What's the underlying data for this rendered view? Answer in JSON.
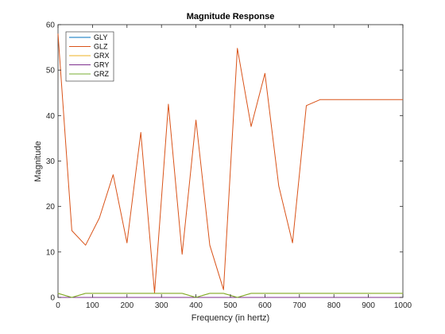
{
  "chart_data": {
    "type": "line",
    "title": "Magnitude Response",
    "xlabel": "Frequency (in hertz)",
    "ylabel": "Magnitude",
    "xlim": [
      0,
      1000
    ],
    "ylim": [
      0,
      60
    ],
    "xticks": [
      0,
      100,
      200,
      300,
      400,
      500,
      600,
      700,
      800,
      900,
      1000
    ],
    "yticks": [
      0,
      10,
      20,
      30,
      40,
      50,
      60
    ],
    "xtick_labels": [
      "0",
      "100",
      "200",
      "300",
      "400",
      "500",
      "600",
      "700",
      "800",
      "900",
      "1000"
    ],
    "ytick_labels": [
      "0",
      "10",
      "20",
      "30",
      "40",
      "50",
      "60"
    ],
    "grid": false,
    "legend_position": "top-left",
    "series": [
      {
        "name": "GLY",
        "color": "#0072BD",
        "x": [
          0,
          1000
        ],
        "y": [
          0,
          0
        ]
      },
      {
        "name": "GLZ",
        "color": "#D95319",
        "x": [
          0,
          40,
          80,
          120,
          160,
          200,
          240,
          280,
          320,
          360,
          400,
          440,
          480,
          520,
          560,
          600,
          640,
          680,
          720,
          760,
          800,
          840,
          880,
          920,
          960,
          1000
        ],
        "y": [
          58,
          14.7,
          11.5,
          17.5,
          27,
          12,
          36.3,
          1,
          42.5,
          9.5,
          39,
          11.5,
          1.7,
          54.8,
          37.6,
          49.3,
          24.5,
          12,
          42.2,
          43.5,
          43.5,
          43.5,
          43.5,
          43.5,
          43.5,
          43.5
        ]
      },
      {
        "name": "GRX",
        "color": "#EDB120",
        "x": [
          0,
          40,
          80,
          120,
          160,
          200,
          240,
          280,
          320,
          360,
          400,
          440,
          480,
          520,
          560,
          600,
          640,
          680,
          720,
          760,
          800,
          840,
          880,
          920,
          960,
          1000
        ],
        "y": [
          0.9,
          0,
          0.9,
          0.9,
          0.9,
          0.9,
          0.9,
          0.9,
          0.9,
          0.9,
          0,
          0.9,
          0.9,
          0,
          0.9,
          0.9,
          0.9,
          0.9,
          0.9,
          0.9,
          0.9,
          0.9,
          0.9,
          0.9,
          0.9,
          0.9
        ]
      },
      {
        "name": "GRY",
        "color": "#7E2F8E",
        "x": [
          0,
          1000
        ],
        "y": [
          0,
          0
        ]
      },
      {
        "name": "GRZ",
        "color": "#77AC30",
        "x": [
          0,
          40,
          80,
          120,
          160,
          200,
          240,
          280,
          320,
          360,
          400,
          440,
          480,
          520,
          560,
          600,
          640,
          680,
          720,
          760,
          800,
          840,
          880,
          920,
          960,
          1000
        ],
        "y": [
          0.9,
          0,
          0.9,
          0.9,
          0.9,
          0.9,
          0.9,
          0.9,
          0.9,
          0.9,
          0,
          0.9,
          0.9,
          0,
          0.9,
          0.9,
          0.9,
          0.9,
          0.9,
          0.9,
          0.9,
          0.9,
          0.9,
          0.9,
          0.9,
          0.9
        ]
      }
    ]
  }
}
